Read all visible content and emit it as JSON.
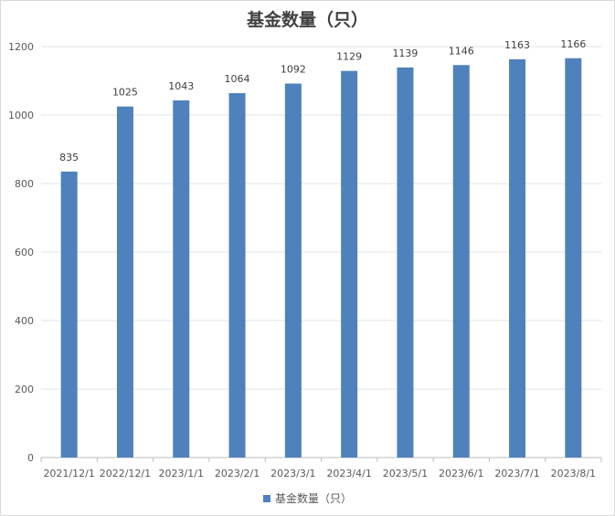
{
  "chart_data": {
    "type": "bar",
    "title": "基金数量（只）",
    "categories": [
      "2021/12/1",
      "2022/12/1",
      "2023/1/1",
      "2023/2/1",
      "2023/3/1",
      "2023/4/1",
      "2023/5/1",
      "2023/6/1",
      "2023/7/1",
      "2023/8/1"
    ],
    "series": [
      {
        "name": "基金数量（只）",
        "values": [
          835,
          1025,
          1043,
          1064,
          1092,
          1129,
          1139,
          1146,
          1163,
          1166
        ],
        "color": "#4f81bd"
      }
    ],
    "ylim": [
      0,
      1200
    ],
    "yticks": [
      0,
      200,
      400,
      600,
      800,
      1000,
      1200
    ],
    "grid": true,
    "legend": "bottom",
    "data_labels": true
  }
}
